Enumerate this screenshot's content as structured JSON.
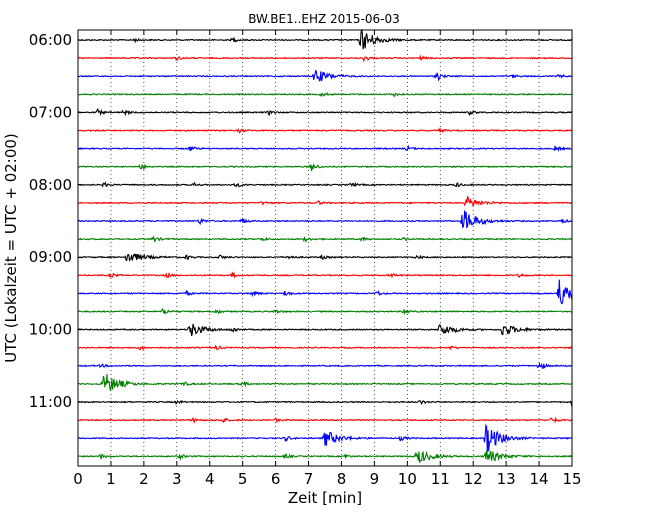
{
  "chart_data": {
    "type": "line",
    "title": "BW.BE1..EHZ 2015-06-03",
    "xlabel": "Zeit  [min]",
    "ylabel": "UTC (Lokalzeit = UTC + 02:00)",
    "xlim": [
      0,
      15
    ],
    "x_ticks": [
      "0",
      "1",
      "2",
      "3",
      "4",
      "5",
      "6",
      "7",
      "8",
      "9",
      "10",
      "11",
      "12",
      "13",
      "14",
      "15"
    ],
    "y_tick_labels": [
      "06:00",
      "07:00",
      "08:00",
      "09:00",
      "10:00",
      "11:00"
    ],
    "grid": "vertical dotted",
    "trace_interval_min": 15,
    "colors": [
      "#000000",
      "#ff0000",
      "#0000ff",
      "#008000"
    ],
    "traces": [
      {
        "start": "06:00",
        "events": [
          [
            8.6,
            22
          ],
          [
            4.7,
            4
          ],
          [
            1.7,
            3
          ]
        ]
      },
      {
        "start": "06:15",
        "events": [
          [
            3.0,
            4
          ],
          [
            8.7,
            6
          ],
          [
            10.4,
            3
          ]
        ]
      },
      {
        "start": "06:30",
        "events": [
          [
            7.2,
            14
          ],
          [
            10.9,
            9
          ],
          [
            13.2,
            3
          ],
          [
            14.6,
            3
          ]
        ]
      },
      {
        "start": "06:45",
        "events": [
          [
            7.4,
            4
          ],
          [
            9.6,
            3
          ]
        ]
      },
      {
        "start": "07:00",
        "events": [
          [
            0.6,
            5
          ],
          [
            1.4,
            5
          ],
          [
            5.8,
            4
          ],
          [
            11.9,
            4
          ]
        ]
      },
      {
        "start": "07:15",
        "events": [
          [
            4.9,
            4
          ],
          [
            11.0,
            3
          ]
        ]
      },
      {
        "start": "07:30",
        "events": [
          [
            3.4,
            5
          ],
          [
            10.0,
            4
          ],
          [
            14.5,
            5
          ]
        ]
      },
      {
        "start": "07:45",
        "events": [
          [
            1.9,
            5
          ],
          [
            7.1,
            9
          ]
        ]
      },
      {
        "start": "08:00",
        "events": [
          [
            0.8,
            4
          ],
          [
            3.5,
            4
          ],
          [
            4.8,
            5
          ],
          [
            8.3,
            4
          ],
          [
            11.5,
            4
          ]
        ]
      },
      {
        "start": "08:15",
        "events": [
          [
            11.8,
            11
          ],
          [
            5.6,
            3
          ],
          [
            7.3,
            3
          ]
        ]
      },
      {
        "start": "08:30",
        "events": [
          [
            11.7,
            22
          ],
          [
            3.7,
            5
          ],
          [
            5.0,
            5
          ],
          [
            14.7,
            4
          ]
        ]
      },
      {
        "start": "08:45",
        "events": [
          [
            2.3,
            6
          ],
          [
            5.6,
            3
          ],
          [
            6.9,
            4
          ],
          [
            8.6,
            4
          ],
          [
            9.9,
            3
          ]
        ]
      },
      {
        "start": "09:00",
        "events": [
          [
            1.5,
            12
          ],
          [
            3.3,
            4
          ],
          [
            4.3,
            4
          ],
          [
            6.4,
            4
          ],
          [
            7.4,
            4
          ],
          [
            10.3,
            3
          ]
        ]
      },
      {
        "start": "09:15",
        "events": [
          [
            1.0,
            4
          ],
          [
            2.7,
            4
          ],
          [
            4.7,
            4
          ],
          [
            9.5,
            4
          ],
          [
            13.4,
            3
          ]
        ]
      },
      {
        "start": "09:30",
        "events": [
          [
            14.6,
            28
          ],
          [
            3.3,
            4
          ],
          [
            5.3,
            5
          ],
          [
            6.3,
            6
          ],
          [
            9.1,
            4
          ]
        ]
      },
      {
        "start": "09:45",
        "events": [
          [
            2.6,
            6
          ],
          [
            4.2,
            4
          ],
          [
            6.0,
            4
          ],
          [
            9.9,
            5
          ]
        ]
      },
      {
        "start": "10:00",
        "events": [
          [
            3.4,
            14
          ],
          [
            11.0,
            12
          ],
          [
            12.9,
            12
          ],
          [
            4.7,
            4
          ]
        ]
      },
      {
        "start": "10:15",
        "events": [
          [
            1.9,
            4
          ],
          [
            4.2,
            4
          ],
          [
            11.3,
            3
          ]
        ]
      },
      {
        "start": "10:30",
        "events": [
          [
            14.0,
            10
          ],
          [
            0.7,
            3
          ]
        ]
      },
      {
        "start": "10:45",
        "events": [
          [
            0.8,
            22
          ],
          [
            3.2,
            4
          ],
          [
            5.0,
            4
          ]
        ]
      },
      {
        "start": "11:00",
        "events": [
          [
            15.0,
            8
          ],
          [
            10.4,
            4
          ],
          [
            3.0,
            3
          ]
        ]
      },
      {
        "start": "11:15",
        "events": [
          [
            14.4,
            6
          ],
          [
            3.5,
            4
          ],
          [
            4.4,
            4
          ],
          [
            6.0,
            3
          ]
        ]
      },
      {
        "start": "11:30",
        "events": [
          [
            12.4,
            28
          ],
          [
            7.5,
            16
          ],
          [
            6.3,
            5
          ],
          [
            9.8,
            4
          ]
        ]
      },
      {
        "start": "11:45",
        "events": [
          [
            10.3,
            14
          ],
          [
            12.4,
            14
          ],
          [
            0.7,
            4
          ],
          [
            3.1,
            4
          ],
          [
            6.3,
            4
          ],
          [
            8.1,
            3
          ]
        ]
      }
    ]
  }
}
